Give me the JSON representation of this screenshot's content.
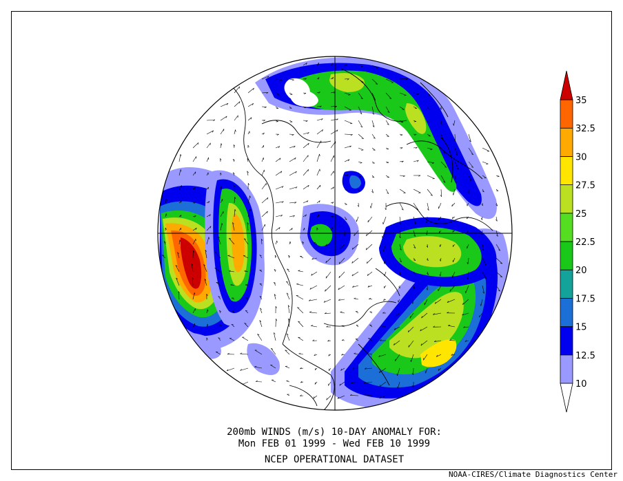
{
  "caption": {
    "line1": "200mb WINDS (m/s)   10-DAY ANOMALY FOR:",
    "line2": "Mon FEB 01 1999 - Wed FEB 10 1999",
    "line3": "NCEP OPERATIONAL DATASET"
  },
  "credit": "NOAA-CIRES/Climate Diagnostics Center",
  "colorbar": {
    "labels": [
      "10",
      "12.5",
      "15",
      "17.5",
      "20",
      "22.5",
      "25",
      "27.5",
      "30",
      "32.5",
      "35"
    ],
    "colors": [
      "#ffffff",
      "#9999ff",
      "#0000ee",
      "#1c6fd6",
      "#13a39a",
      "#19c819",
      "#55dd22",
      "#bbe022",
      "#ffe500",
      "#ffaa00",
      "#ff6600",
      "#cc0000"
    ]
  },
  "colors": {
    "land_outline": "#000000",
    "wind_arrow": "#000000"
  }
}
